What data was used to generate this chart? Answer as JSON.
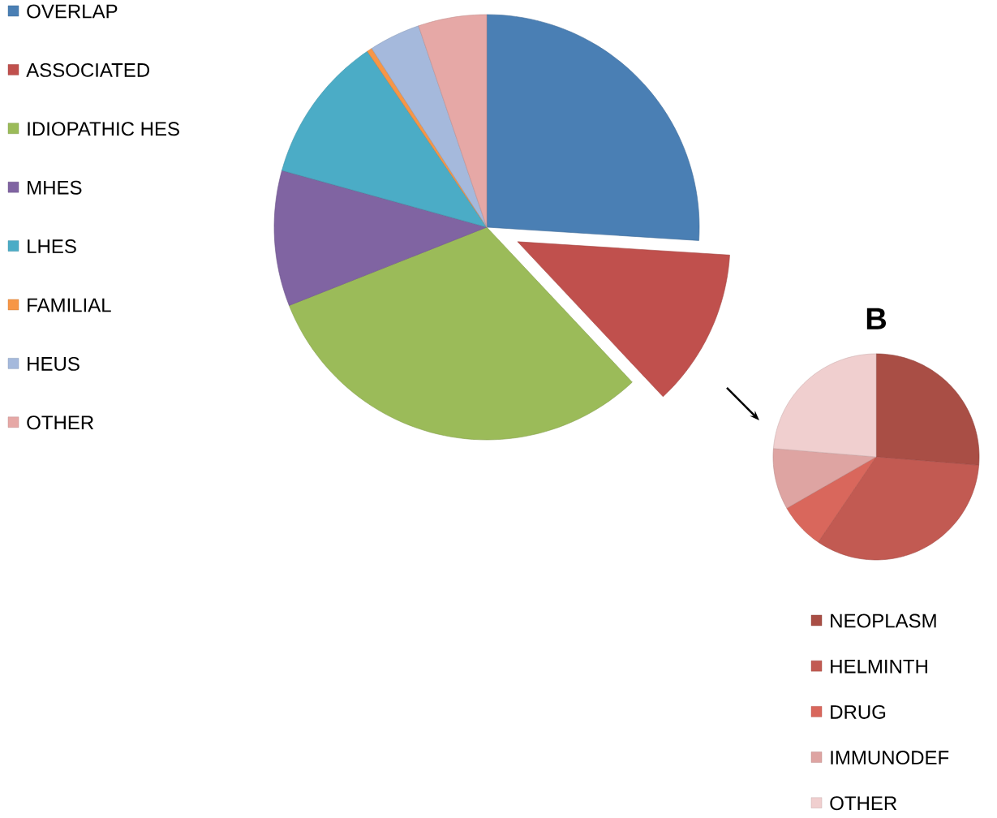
{
  "chart_data": [
    {
      "type": "pie",
      "categories": [
        "OVERLAP",
        "ASSOCIATED",
        "IDIOPATHIC HES",
        "MHES",
        "LHES",
        "FAMILIAL",
        "HEUS",
        "OTHER"
      ],
      "values": [
        26,
        12,
        31,
        10.3,
        11.2,
        0.4,
        3.9,
        5.2
      ],
      "colors": [
        "#4a7fb4",
        "#c0504d",
        "#9bbb59",
        "#8064a2",
        "#4bacc6",
        "#f79646",
        "#a5b9dc",
        "#e6a8a6"
      ],
      "legend": "left"
    },
    {
      "type": "pie",
      "title": "B",
      "categories": [
        "NEOPLASM",
        "HELMINTH",
        "DRUG",
        "IMMUNODEF",
        "OTHER"
      ],
      "values": [
        26.3,
        33.2,
        7.2,
        9.6,
        23.7
      ],
      "colors": [
        "#a94e45",
        "#c25a52",
        "#d9675c",
        "#dea4a2",
        "#f0cfcf"
      ],
      "legend": "bottom right"
    }
  ]
}
